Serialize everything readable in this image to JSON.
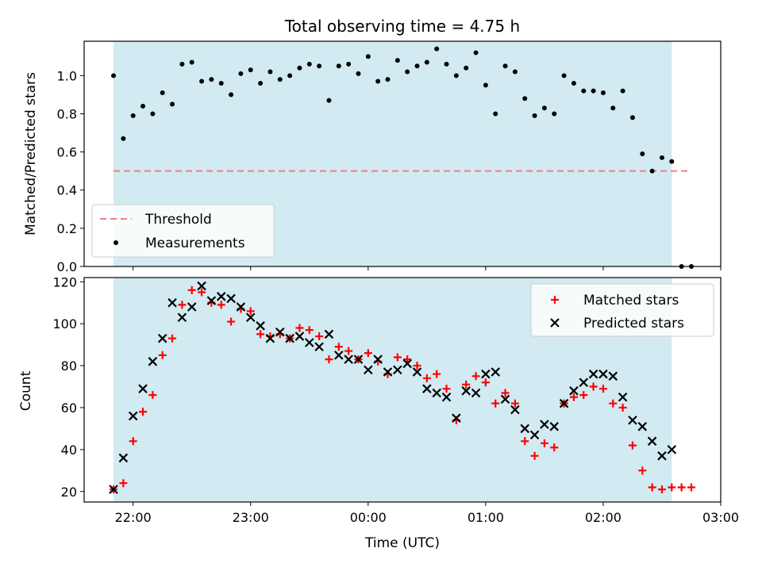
{
  "title": "Total observing time = 4.75 h",
  "colors": {
    "shade": "#add8e6",
    "threshold": "#f08080",
    "matched": "#ff0000",
    "predicted": "#000000",
    "measurement": "#000000"
  },
  "chart_data": [
    {
      "type": "scatter",
      "title": "Total observing time = 4.75 h",
      "ylabel": "Matched/Predicted stars",
      "xlabel": "",
      "xlim": [
        "21:35",
        "03:00"
      ],
      "ylim": [
        0,
        1.18
      ],
      "yticks": [
        "0.0",
        "0.2",
        "0.4",
        "0.6",
        "0.8",
        "1.0"
      ],
      "grid": false,
      "legend_position": "lower-left",
      "shaded_span": [
        "21:50",
        "02:35"
      ],
      "threshold": {
        "name": "Threshold",
        "y": 0.5,
        "x": [
          "21:50",
          "02:45"
        ],
        "style": "dashed"
      },
      "series": [
        {
          "name": "Measurements",
          "marker": "dot",
          "points": [
            [
              "21:50",
              1.0
            ],
            [
              "21:55",
              0.67
            ],
            [
              "22:00",
              0.79
            ],
            [
              "22:05",
              0.84
            ],
            [
              "22:10",
              0.8
            ],
            [
              "22:15",
              0.91
            ],
            [
              "22:20",
              0.85
            ],
            [
              "22:25",
              1.06
            ],
            [
              "22:30",
              1.07
            ],
            [
              "22:35",
              0.97
            ],
            [
              "22:40",
              0.98
            ],
            [
              "22:45",
              0.96
            ],
            [
              "22:50",
              0.9
            ],
            [
              "22:55",
              1.01
            ],
            [
              "23:00",
              1.03
            ],
            [
              "23:05",
              0.96
            ],
            [
              "23:10",
              1.02
            ],
            [
              "23:15",
              0.98
            ],
            [
              "23:20",
              1.0
            ],
            [
              "23:25",
              1.04
            ],
            [
              "23:30",
              1.06
            ],
            [
              "23:35",
              1.05
            ],
            [
              "23:40",
              0.87
            ],
            [
              "23:45",
              1.05
            ],
            [
              "23:50",
              1.06
            ],
            [
              "23:55",
              1.01
            ],
            [
              "00:00",
              1.1
            ],
            [
              "00:05",
              0.97
            ],
            [
              "00:10",
              0.98
            ],
            [
              "00:15",
              1.08
            ],
            [
              "00:20",
              1.02
            ],
            [
              "00:25",
              1.05
            ],
            [
              "00:30",
              1.07
            ],
            [
              "00:35",
              1.14
            ],
            [
              "00:40",
              1.06
            ],
            [
              "00:45",
              1.0
            ],
            [
              "00:50",
              1.04
            ],
            [
              "00:55",
              1.12
            ],
            [
              "01:00",
              0.95
            ],
            [
              "01:05",
              0.8
            ],
            [
              "01:10",
              1.05
            ],
            [
              "01:15",
              1.02
            ],
            [
              "01:20",
              0.88
            ],
            [
              "01:25",
              0.79
            ],
            [
              "01:30",
              0.83
            ],
            [
              "01:35",
              0.8
            ],
            [
              "01:40",
              1.0
            ],
            [
              "01:45",
              0.96
            ],
            [
              "01:50",
              0.92
            ],
            [
              "01:55",
              0.92
            ],
            [
              "02:00",
              0.91
            ],
            [
              "02:05",
              0.83
            ],
            [
              "02:10",
              0.92
            ],
            [
              "02:15",
              0.78
            ],
            [
              "02:20",
              0.59
            ],
            [
              "02:25",
              0.5
            ],
            [
              "02:30",
              0.57
            ],
            [
              "02:35",
              0.55
            ],
            [
              "02:40",
              0.0
            ],
            [
              "02:45",
              0.0
            ]
          ]
        }
      ]
    },
    {
      "type": "scatter",
      "title": "",
      "ylabel": "Count",
      "xlabel": "Time (UTC)",
      "xlim": [
        "21:35",
        "03:00"
      ],
      "ylim": [
        15,
        122
      ],
      "yticks": [
        "20",
        "40",
        "60",
        "80",
        "100",
        "120"
      ],
      "xticks": [
        "22:00",
        "23:00",
        "00:00",
        "01:00",
        "02:00",
        "03:00"
      ],
      "grid": false,
      "legend_position": "upper-right",
      "shaded_span": [
        "21:50",
        "02:35"
      ],
      "series": [
        {
          "name": "Matched stars",
          "marker": "plus",
          "points": [
            [
              "21:50",
              21
            ],
            [
              "21:55",
              24
            ],
            [
              "22:00",
              44
            ],
            [
              "22:05",
              58
            ],
            [
              "22:10",
              66
            ],
            [
              "22:15",
              85
            ],
            [
              "22:20",
              93
            ],
            [
              "22:25",
              109
            ],
            [
              "22:30",
              116
            ],
            [
              "22:35",
              115
            ],
            [
              "22:40",
              110
            ],
            [
              "22:45",
              109
            ],
            [
              "22:50",
              101
            ],
            [
              "22:55",
              107
            ],
            [
              "23:00",
              106
            ],
            [
              "23:05",
              95
            ],
            [
              "23:10",
              94
            ],
            [
              "23:15",
              95
            ],
            [
              "23:20",
              93
            ],
            [
              "23:25",
              98
            ],
            [
              "23:30",
              97
            ],
            [
              "23:35",
              94
            ],
            [
              "23:40",
              83
            ],
            [
              "23:45",
              89
            ],
            [
              "23:50",
              87
            ],
            [
              "23:55",
              83
            ],
            [
              "00:00",
              86
            ],
            [
              "00:05",
              82
            ],
            [
              "00:10",
              76
            ],
            [
              "00:15",
              84
            ],
            [
              "00:20",
              83
            ],
            [
              "00:25",
              80
            ],
            [
              "00:30",
              74
            ],
            [
              "00:35",
              76
            ],
            [
              "00:40",
              69
            ],
            [
              "00:45",
              54
            ],
            [
              "00:50",
              71
            ],
            [
              "00:55",
              75
            ],
            [
              "01:00",
              72
            ],
            [
              "01:05",
              62
            ],
            [
              "01:10",
              67
            ],
            [
              "01:15",
              62
            ],
            [
              "01:20",
              44
            ],
            [
              "01:25",
              37
            ],
            [
              "01:30",
              43
            ],
            [
              "01:35",
              41
            ],
            [
              "01:40",
              62
            ],
            [
              "01:45",
              65
            ],
            [
              "01:50",
              66
            ],
            [
              "01:55",
              70
            ],
            [
              "02:00",
              69
            ],
            [
              "02:05",
              62
            ],
            [
              "02:10",
              60
            ],
            [
              "02:15",
              42
            ],
            [
              "02:20",
              30
            ],
            [
              "02:25",
              22
            ],
            [
              "02:30",
              21
            ],
            [
              "02:35",
              22
            ],
            [
              "02:40",
              22
            ],
            [
              "02:45",
              22
            ]
          ]
        },
        {
          "name": "Predicted stars",
          "marker": "x",
          "points": [
            [
              "21:50",
              21
            ],
            [
              "21:55",
              36
            ],
            [
              "22:00",
              56
            ],
            [
              "22:05",
              69
            ],
            [
              "22:10",
              82
            ],
            [
              "22:15",
              93
            ],
            [
              "22:20",
              110
            ],
            [
              "22:25",
              103
            ],
            [
              "22:30",
              108
            ],
            [
              "22:35",
              118
            ],
            [
              "22:40",
              111
            ],
            [
              "22:45",
              113
            ],
            [
              "22:50",
              112
            ],
            [
              "22:55",
              108
            ],
            [
              "23:00",
              103
            ],
            [
              "23:05",
              99
            ],
            [
              "23:10",
              93
            ],
            [
              "23:15",
              96
            ],
            [
              "23:20",
              93
            ],
            [
              "23:25",
              94
            ],
            [
              "23:30",
              91
            ],
            [
              "23:35",
              89
            ],
            [
              "23:40",
              95
            ],
            [
              "23:45",
              85
            ],
            [
              "23:50",
              83
            ],
            [
              "23:55",
              83
            ],
            [
              "00:00",
              78
            ],
            [
              "00:05",
              83
            ],
            [
              "00:10",
              77
            ],
            [
              "00:15",
              78
            ],
            [
              "00:20",
              81
            ],
            [
              "00:25",
              77
            ],
            [
              "00:30",
              69
            ],
            [
              "00:35",
              67
            ],
            [
              "00:40",
              65
            ],
            [
              "00:45",
              55
            ],
            [
              "00:50",
              68
            ],
            [
              "00:55",
              67
            ],
            [
              "01:00",
              76
            ],
            [
              "01:05",
              77
            ],
            [
              "01:10",
              64
            ],
            [
              "01:15",
              59
            ],
            [
              "01:20",
              50
            ],
            [
              "01:25",
              47
            ],
            [
              "01:30",
              52
            ],
            [
              "01:35",
              51
            ],
            [
              "01:40",
              62
            ],
            [
              "01:45",
              68
            ],
            [
              "01:50",
              72
            ],
            [
              "01:55",
              76
            ],
            [
              "02:00",
              76
            ],
            [
              "02:05",
              75
            ],
            [
              "02:10",
              65
            ],
            [
              "02:15",
              54
            ],
            [
              "02:20",
              51
            ],
            [
              "02:25",
              44
            ],
            [
              "02:30",
              37
            ],
            [
              "02:35",
              40
            ]
          ]
        }
      ]
    }
  ]
}
